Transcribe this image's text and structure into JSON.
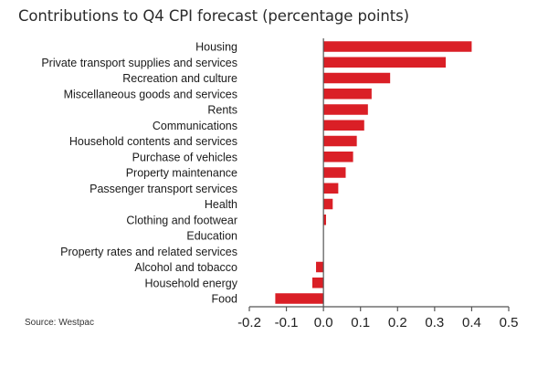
{
  "chart_data": {
    "type": "bar",
    "orientation": "horizontal",
    "title": "Contributions to Q4 CPI forecast (percentage points)",
    "source": "Source: Westpac",
    "xlabel": "",
    "ylabel": "",
    "xlim": [
      -0.2,
      0.5
    ],
    "xticks": [
      -0.2,
      -0.1,
      0.0,
      0.1,
      0.2,
      0.3,
      0.4,
      0.5
    ],
    "xtick_labels": [
      "-0.2",
      "-0.1",
      "0.0",
      "0.1",
      "0.2",
      "0.3",
      "0.4",
      "0.5"
    ],
    "grid": false,
    "legend": "none",
    "bar_color": "#DA1F26",
    "axis_color": "#555555",
    "categories": [
      "Housing",
      "Private transport supplies and services",
      "Recreation and culture",
      "Miscellaneous goods and services",
      "Rents",
      "Communications",
      "Household contents and services",
      "Purchase of vehicles",
      "Property maintenance",
      "Passenger transport services",
      "Health",
      "Clothing and footwear",
      "Education",
      "Property rates and related services",
      "Alcohol and tobacco",
      "Household energy",
      "Food"
    ],
    "values": [
      0.4,
      0.33,
      0.18,
      0.13,
      0.12,
      0.11,
      0.09,
      0.08,
      0.06,
      0.04,
      0.025,
      0.007,
      0.0,
      0.0,
      -0.02,
      -0.03,
      -0.13
    ]
  }
}
